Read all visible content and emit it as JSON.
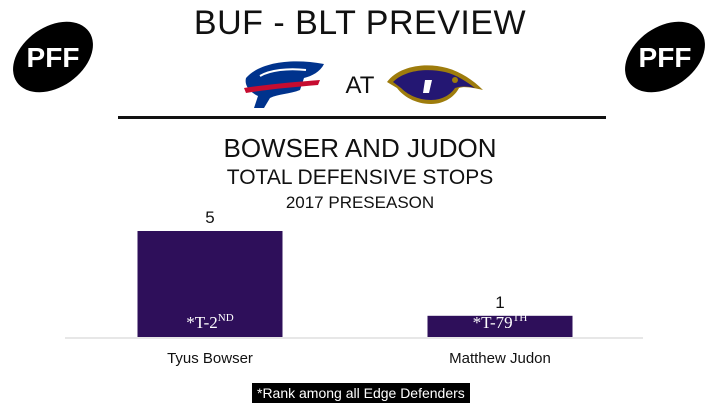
{
  "header": {
    "title": "BUF - BLT PREVIEW",
    "at_label": "AT",
    "logo_text": "PFF"
  },
  "teams": {
    "home": {
      "name": "BUF",
      "logo_icon": "bills-logo-icon",
      "colors": [
        "#00338D",
        "#C60C30"
      ]
    },
    "away": {
      "name": "BLT",
      "logo_icon": "ravens-logo-icon",
      "colors": [
        "#241773",
        "#9E7C0C"
      ]
    }
  },
  "chart_data": {
    "type": "bar",
    "title": "BOWSER AND JUDON",
    "subtitle": "TOTAL DEFENSIVE STOPS",
    "subtitle2": "2017 PRESEASON",
    "categories": [
      "Tyus Bowser",
      "Matthew Judon"
    ],
    "values": [
      5,
      1
    ],
    "rank_labels": [
      {
        "prefix": "*T-2",
        "suffix": "ND"
      },
      {
        "prefix": "*T-79",
        "suffix": "TH"
      }
    ],
    "ylim": [
      0,
      5
    ],
    "bar_color": "#2e0f5a",
    "grid": false
  },
  "footnote": "*Rank among all Edge Defenders"
}
